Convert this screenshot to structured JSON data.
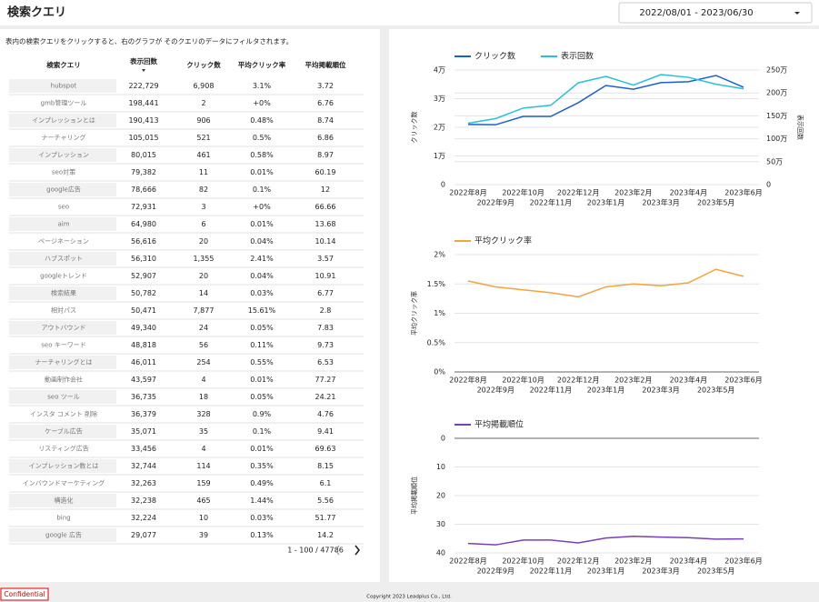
{
  "header": {
    "title": "検索クエリ",
    "date_range": "2022/08/01 - 2023/06/30"
  },
  "table": {
    "description": "表内の検索クエリをクリックすると、右のグラフが そのクエリのデータにフィルタされます。",
    "columns": [
      "検索クエリ",
      "表示回数",
      "クリック数",
      "平均クリック率",
      "平均掲載順位"
    ],
    "rows": [
      [
        "hubspot",
        "222,729",
        "6,908",
        "3.1%",
        "3.72"
      ],
      [
        "gmb管理ツール",
        "198,441",
        "2",
        "+0%",
        "6.76"
      ],
      [
        "インプレッションとは",
        "190,413",
        "906",
        "0.48%",
        "8.74"
      ],
      [
        "ナーチャリング",
        "105,015",
        "521",
        "0.5%",
        "6.86"
      ],
      [
        "インプレッション",
        "80,015",
        "461",
        "0.58%",
        "8.97"
      ],
      [
        "seo対策",
        "79,382",
        "11",
        "0.01%",
        "60.19"
      ],
      [
        "google広告",
        "78,666",
        "82",
        "0.1%",
        "12"
      ],
      [
        "seo",
        "72,931",
        "3",
        "+0%",
        "66.66"
      ],
      [
        "aim",
        "64,980",
        "6",
        "0.01%",
        "13.68"
      ],
      [
        "ページネーション",
        "56,616",
        "20",
        "0.04%",
        "10.14"
      ],
      [
        "ハブスポット",
        "56,310",
        "1,355",
        "2.41%",
        "3.57"
      ],
      [
        "googleトレンド",
        "52,907",
        "20",
        "0.04%",
        "10.91"
      ],
      [
        "検索結果",
        "50,782",
        "14",
        "0.03%",
        "6.77"
      ],
      [
        "相対パス",
        "50,471",
        "7,877",
        "15.61%",
        "2.8"
      ],
      [
        "アウトバウンド",
        "49,340",
        "24",
        "0.05%",
        "7.83"
      ],
      [
        "seo キーワード",
        "48,818",
        "56",
        "0.11%",
        "9.73"
      ],
      [
        "ナーチャリングとは",
        "46,011",
        "254",
        "0.55%",
        "6.53"
      ],
      [
        "動画制作会社",
        "43,597",
        "4",
        "0.01%",
        "77.27"
      ],
      [
        "seo ツール",
        "36,735",
        "18",
        "0.05%",
        "24.21"
      ],
      [
        "インスタ コメント 削除",
        "36,379",
        "328",
        "0.9%",
        "4.76"
      ],
      [
        "ケーブル広告",
        "35,071",
        "35",
        "0.1%",
        "9.41"
      ],
      [
        "リスティング広告",
        "33,456",
        "4",
        "0.01%",
        "69.63"
      ],
      [
        "インプレッション数とは",
        "32,744",
        "114",
        "0.35%",
        "8.15"
      ],
      [
        "インバウンドマーケティング",
        "32,263",
        "159",
        "0.49%",
        "6.1"
      ],
      [
        "構造化",
        "32,238",
        "465",
        "1.44%",
        "5.56"
      ],
      [
        "bing",
        "32,224",
        "10",
        "0.03%",
        "51.77"
      ],
      [
        "google 広告",
        "29,077",
        "39",
        "0.13%",
        "14.2"
      ]
    ],
    "pagination": "1 - 100 / 47786"
  },
  "charts": [
    {
      "type": "line",
      "categories": [
        "2022年8月",
        "2022年9月",
        "2022年10月",
        "2022年11月",
        "2022年12月",
        "2023年1月",
        "2023年2月",
        "2023年3月",
        "2023年4月",
        "2023年5月",
        "2023年6月"
      ],
      "series": [
        {
          "name": "クリック数",
          "color": "#1a5fd1",
          "values": [
            21000,
            20900,
            23800,
            23800,
            28600,
            34600,
            33300,
            35600,
            35900,
            38100,
            34000
          ]
        },
        {
          "name": "表示回数",
          "color": "#26c1d6",
          "axis": "y2",
          "values": [
            1340000,
            1440000,
            1670000,
            1730000,
            2220000,
            2360000,
            2170000,
            2400000,
            2340000,
            2190000,
            2090000
          ]
        }
      ],
      "ylabel": "クリック数",
      "y2label": "表示回数",
      "ylim": [
        0,
        40000
      ],
      "yticks": [
        0,
        {
          "value": 10000,
          "label": "1万"
        },
        {
          "value": 20000,
          "label": "2万"
        },
        {
          "value": 30000,
          "label": "3万"
        },
        {
          "value": 40000,
          "label": "4万"
        }
      ],
      "y2lim": [
        0,
        2500000
      ],
      "y2ticks": [
        0,
        {
          "value": 500000,
          "label": "50万"
        },
        {
          "value": 1000000,
          "label": "100万"
        },
        {
          "value": 1500000,
          "label": "150万"
        },
        {
          "value": 2000000,
          "label": "200万"
        },
        {
          "value": 2500000,
          "label": "250万"
        }
      ],
      "grid": true,
      "legend": "top-left"
    },
    {
      "type": "line",
      "categories": [
        "2022年8月",
        "2022年9月",
        "2022年10月",
        "2022年11月",
        "2022年12月",
        "2023年1月",
        "2023年2月",
        "2023年3月",
        "2023年4月",
        "2023年5月",
        "2023年6月"
      ],
      "series": [
        {
          "name": "平均クリック率",
          "color": "#f5a33b",
          "values": [
            1.55,
            1.45,
            1.4,
            1.35,
            1.28,
            1.45,
            1.5,
            1.47,
            1.52,
            1.75,
            1.63
          ]
        }
      ],
      "ylabel": "平均クリック率",
      "ylim": [
        0,
        2
      ],
      "yticks": [
        {
          "value": 0,
          "label": "0%"
        },
        {
          "value": 0.5,
          "label": "0.5%"
        },
        {
          "value": 1,
          "label": "1%"
        },
        {
          "value": 1.5,
          "label": "1.5%"
        },
        {
          "value": 2,
          "label": "2%"
        }
      ],
      "grid": true,
      "legend": "top-left"
    },
    {
      "type": "line",
      "categories": [
        "2022年8月",
        "2022年9月",
        "2022年10月",
        "2022年11月",
        "2022年12月",
        "2023年1月",
        "2023年2月",
        "2023年3月",
        "2023年4月",
        "2023年5月",
        "2023年6月"
      ],
      "series": [
        {
          "name": "平均掲載順位",
          "color": "#7b3fb5",
          "values": [
            36.7,
            37.2,
            35.5,
            35.5,
            36.5,
            34.8,
            34.2,
            34.5,
            34.7,
            35.2,
            35.1
          ]
        }
      ],
      "ylabel": "平均掲載順位",
      "ylim": [
        0,
        40
      ],
      "y_reversed": true,
      "yticks": [
        0,
        10,
        20,
        30,
        40
      ],
      "grid": true,
      "legend": "top-left"
    }
  ],
  "footer": {
    "confidential": "Confidential",
    "copyright": "Copyright 2023 Leadplus Co., Ltd."
  }
}
